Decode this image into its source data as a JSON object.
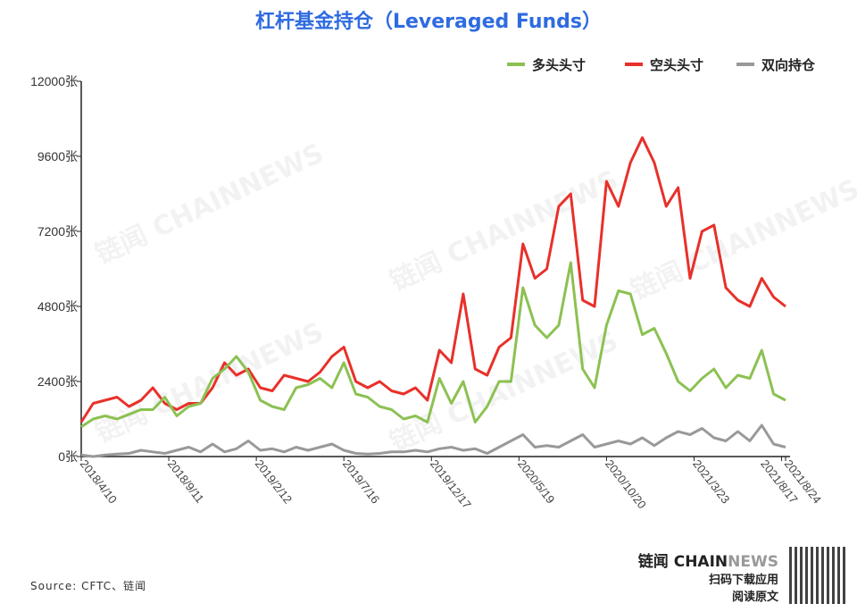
{
  "chart_data": {
    "type": "line",
    "title": "杠杆基金持仓（Leveraged Funds）",
    "xlabel": "",
    "ylabel": "",
    "ylim": [
      0,
      12000
    ],
    "yticks": [
      "0张",
      "2400张",
      "4800张",
      "7200张",
      "9600张",
      "12000张"
    ],
    "ytick_values": [
      0,
      2400,
      4800,
      7200,
      9600,
      12000
    ],
    "xticks": [
      {
        "label": "2018/4/10",
        "week": 0
      },
      {
        "label": "2018/9/11",
        "week": 22
      },
      {
        "label": "2019/2/12",
        "week": 44
      },
      {
        "label": "2019/7/16",
        "week": 66
      },
      {
        "label": "2019/12/17",
        "week": 88
      },
      {
        "label": "2020/5/19",
        "week": 110
      },
      {
        "label": "2020/10/20",
        "week": 132
      },
      {
        "label": "2021/3/23",
        "week": 154
      },
      {
        "label": "2021/8/17",
        "week": 176
      },
      {
        "label": "2021/8/24",
        "week": 177
      }
    ],
    "x_weeks": [
      0,
      3,
      6,
      9,
      12,
      15,
      18,
      21,
      24,
      27,
      30,
      33,
      36,
      39,
      42,
      45,
      48,
      51,
      54,
      57,
      60,
      63,
      66,
      69,
      72,
      75,
      78,
      81,
      84,
      87,
      90,
      93,
      96,
      99,
      102,
      105,
      108,
      111,
      114,
      117,
      120,
      123,
      126,
      129,
      132,
      135,
      138,
      141,
      144,
      147,
      150,
      153,
      156,
      159,
      162,
      165,
      168,
      171,
      174,
      177
    ],
    "series": [
      {
        "name": "多头头寸",
        "color": "#8cc152",
        "values": [
          950,
          1200,
          1300,
          1200,
          1350,
          1500,
          1500,
          1900,
          1300,
          1600,
          1700,
          2500,
          2800,
          3200,
          2700,
          1800,
          1600,
          1500,
          2200,
          2300,
          2500,
          2200,
          3000,
          2000,
          1900,
          1600,
          1500,
          1200,
          1300,
          1100,
          2500,
          1700,
          2400,
          1100,
          1600,
          2400,
          2400,
          5400,
          4200,
          3800,
          4200,
          6200,
          2800,
          2200,
          4200,
          5300,
          5200,
          3900,
          4100,
          3300,
          2400,
          2100,
          2500,
          2800,
          2200,
          2600,
          2500,
          3400,
          2000,
          1800
        ]
      },
      {
        "name": "空头头寸",
        "color": "#e8302a",
        "values": [
          1100,
          1700,
          1800,
          1900,
          1600,
          1800,
          2200,
          1700,
          1500,
          1700,
          1700,
          2200,
          3000,
          2600,
          2800,
          2200,
          2100,
          2600,
          2500,
          2400,
          2700,
          3200,
          3500,
          2400,
          2200,
          2400,
          2100,
          2000,
          2200,
          1800,
          3400,
          3000,
          5200,
          2800,
          2600,
          3500,
          3800,
          6800,
          5700,
          6000,
          8000,
          8400,
          5000,
          4800,
          8800,
          8000,
          9400,
          10200,
          9400,
          8000,
          8600,
          5700,
          7200,
          7400,
          5400,
          5000,
          4800,
          5700,
          5100,
          4800
        ]
      },
      {
        "name": "双向持仓",
        "color": "#999999",
        "values": [
          50,
          0,
          50,
          80,
          100,
          200,
          150,
          100,
          200,
          300,
          150,
          400,
          150,
          250,
          500,
          200,
          250,
          150,
          300,
          200,
          300,
          400,
          200,
          100,
          80,
          100,
          150,
          150,
          200,
          150,
          250,
          300,
          200,
          250,
          100,
          300,
          500,
          700,
          300,
          350,
          300,
          500,
          700,
          300,
          400,
          500,
          400,
          600,
          350,
          600,
          800,
          700,
          900,
          600,
          500,
          800,
          500,
          1000,
          400,
          300
        ]
      }
    ],
    "legend": "top-right",
    "grid": false
  },
  "source": "Source: CFTC、链闻",
  "brand": {
    "name1": "链闻 CHAIN",
    "name2": "NEWS",
    "line1": "扫码下载应用",
    "line2": "阅读原文"
  },
  "watermark": "链闻 CHAINNEWS"
}
